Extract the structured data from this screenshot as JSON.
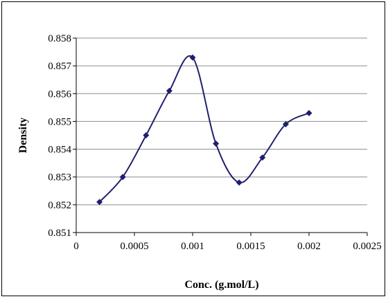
{
  "chart_data": {
    "type": "line",
    "title": "",
    "xlabel": "Conc. (g.mol/L)",
    "ylabel": "Density",
    "xlim": [
      0,
      0.0025
    ],
    "ylim": [
      0.851,
      0.858
    ],
    "x_ticks": [
      0,
      0.0005,
      0.001,
      0.0015,
      0.002,
      0.0025
    ],
    "x_tick_labels": [
      "0",
      "0.0005",
      "0.001",
      "0.0015",
      "0.002",
      "0.0025"
    ],
    "y_ticks": [
      0.851,
      0.852,
      0.853,
      0.854,
      0.855,
      0.856,
      0.857,
      0.858
    ],
    "y_tick_labels": [
      "0.851",
      "0.852",
      "0.853",
      "0.854",
      "0.855",
      "0.856",
      "0.857",
      "0.858"
    ],
    "grid": "horizontal",
    "legend": "none",
    "line_style": "smoothed",
    "marker": "diamond",
    "series": [
      {
        "color": "#1f1f6e",
        "x": [
          0.0002,
          0.0004,
          0.0006,
          0.0008,
          0.001,
          0.0012,
          0.0014,
          0.0016,
          0.0018,
          0.002
        ],
        "y": [
          0.8521,
          0.853,
          0.8545,
          0.8561,
          0.8573,
          0.8542,
          0.8528,
          0.8537,
          0.8549,
          0.8553
        ]
      }
    ]
  }
}
